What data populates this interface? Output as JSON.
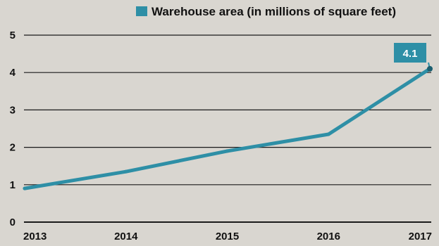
{
  "chart_data": {
    "type": "line",
    "title": "",
    "xlabel": "",
    "ylabel": "",
    "x": [
      "2013",
      "2014",
      "2015",
      "2016",
      "2017"
    ],
    "series": [
      {
        "name": "Warehouse area (in millions of square feet)",
        "values": [
          0.9,
          1.35,
          1.9,
          2.35,
          4.1
        ]
      }
    ],
    "ylim": [
      0,
      5
    ],
    "yticks": [
      0,
      1,
      2,
      3,
      4,
      5
    ],
    "grid": "horizontal",
    "legend_position": "top-right",
    "callout": {
      "label": "4.1",
      "value": 4.1,
      "x": "2017"
    },
    "colors": {
      "line": "#2e8fa6",
      "callout_fill": "#2e8fa6",
      "grid": "#1a1a1a",
      "background": "#d9d6d0"
    }
  }
}
